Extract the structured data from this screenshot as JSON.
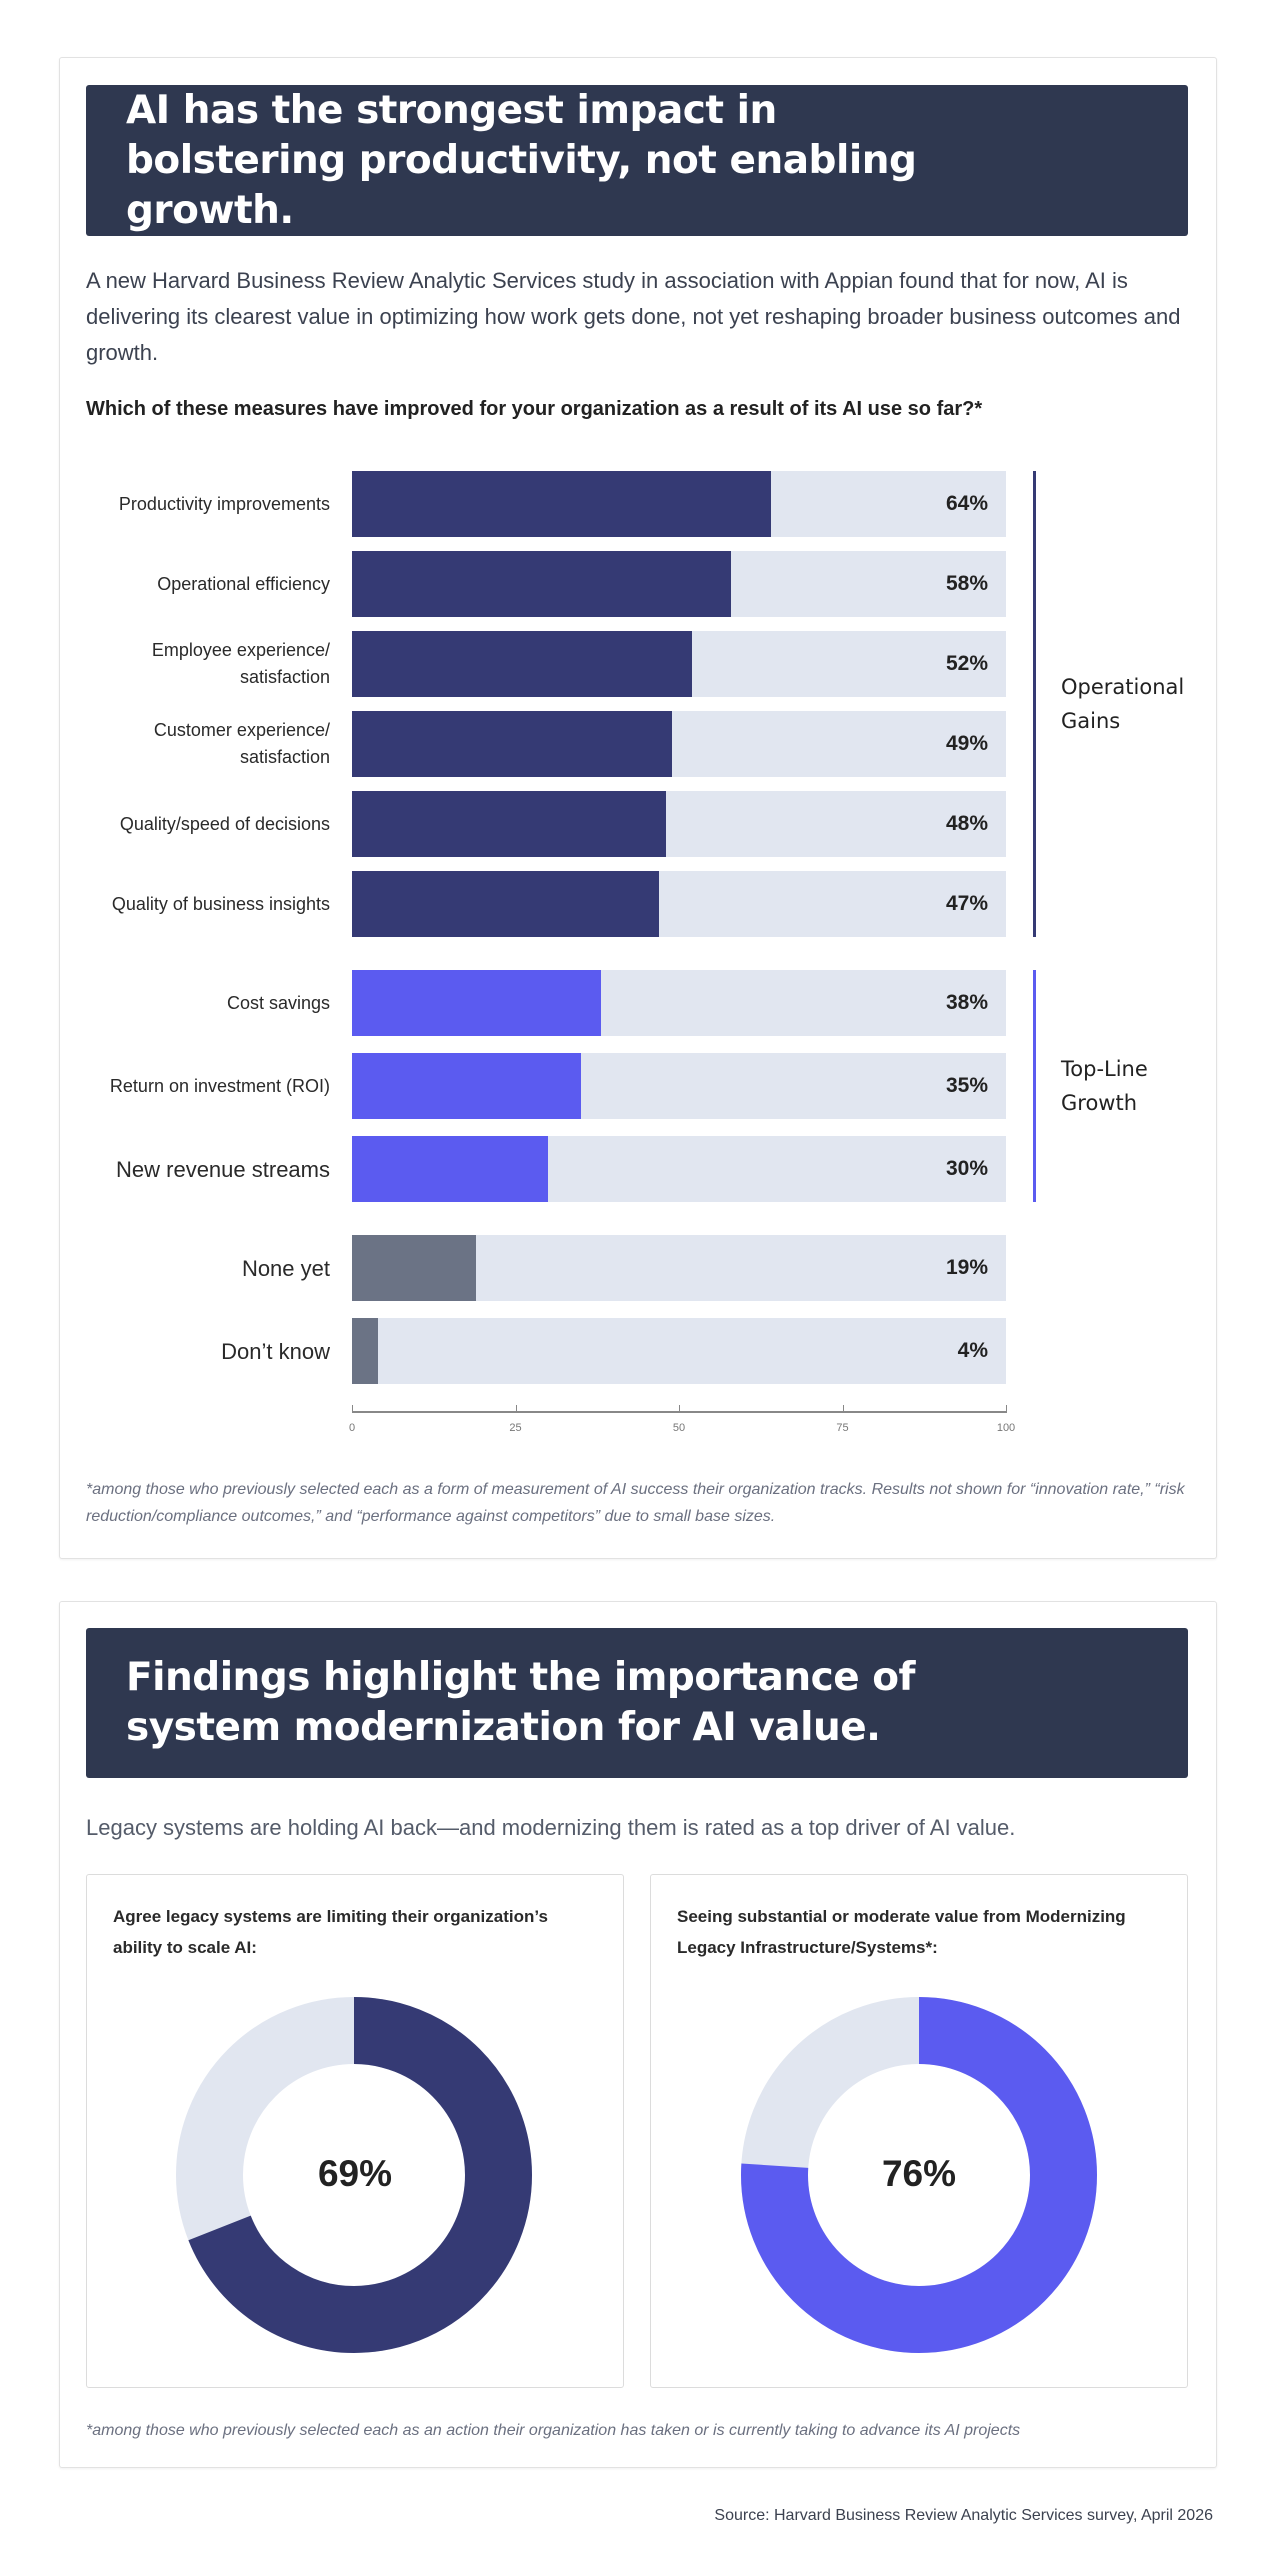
{
  "section1": {
    "title": "AI has the strongest impact in bolstering productivity, not enabling growth.",
    "intro": "A new Harvard Business Review Analytic Services study in association with Appian found that for now, AI is delivering its clearest value in optimizing how work gets done, not yet reshaping broader business outcomes and growth.",
    "question": "Which of these measures have improved for your organization as a result of its AI use so far?*",
    "footnote": "*among those who previously selected each as a form of measurement of AI success their organization tracks. Results not shown for “innovation rate,” “risk reduction/compliance outcomes,” and “performance against competitors” due to small base sizes."
  },
  "chart_data": [
    {
      "type": "bar",
      "orientation": "horizontal",
      "categories": [
        "Productivity improvements",
        "Operational efficiency",
        "Employee experience/\nsatisfaction",
        "Customer experience/\nsatisfaction",
        "Quality/speed of decisions",
        "Quality of business insights",
        "Cost savings",
        "Return on investment (ROI)",
        "New revenue streams",
        "None yet",
        "Don’t know"
      ],
      "values": [
        64,
        58,
        52,
        49,
        48,
        47,
        38,
        35,
        30,
        19,
        4
      ],
      "data_labels": [
        "64%",
        "58%",
        "52%",
        "49%",
        "48%",
        "47%",
        "38%",
        "35%",
        "30%",
        "19%",
        "4%"
      ],
      "groups": [
        {
          "name": "Operational Gains",
          "color": "#353a74",
          "indices": [
            0,
            1,
            2,
            3,
            4,
            5
          ]
        },
        {
          "name": "Top-Line Growth",
          "color": "#5b5bf0",
          "indices": [
            6,
            7,
            8
          ]
        },
        {
          "name": "",
          "color": "#6b7385",
          "indices": [
            9,
            10
          ]
        }
      ],
      "xlim": [
        0,
        100
      ],
      "xticks": [
        "0",
        "25",
        "50",
        "75",
        "100"
      ],
      "track_color": "#e1e6f0"
    },
    {
      "type": "pie",
      "donut": true,
      "title": "Agree legacy systems are limiting their organization’s ability to scale AI:",
      "value": 69,
      "label": "69%",
      "color": "#353a74",
      "rest_color": "#e1e6f0"
    },
    {
      "type": "pie",
      "donut": true,
      "title": "Seeing substantial or moderate value from Modernizing Legacy Infrastructure/Systems*:",
      "value": 76,
      "label": "76%",
      "color": "#5b5bf0",
      "rest_color": "#e1e6f0"
    }
  ],
  "section2": {
    "title": "Findings highlight the importance of system modernization for AI value.",
    "subtitle": "Legacy systems are holding AI back—and modernizing them is rated as a top driver of AI value.",
    "footnote": "*among those who previously selected each as an action their organization has taken or is currently taking to advance its AI projects"
  },
  "source": "Source: Harvard Business Review Analytic Services survey, April 2026",
  "colors": {
    "banner": "#2f3850",
    "operational": "#353a74",
    "topline": "#5b5bf0",
    "other": "#6b7385",
    "track": "#e1e6f0"
  }
}
